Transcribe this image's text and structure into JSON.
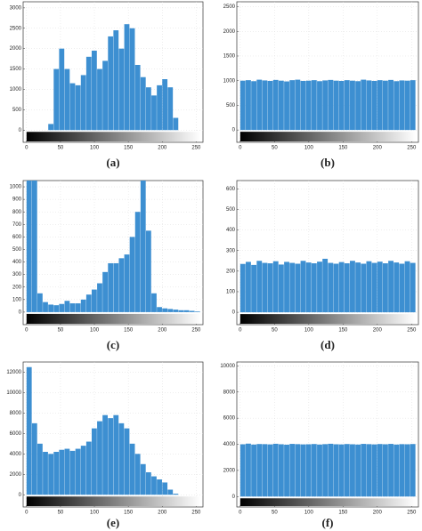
{
  "chart_data": [
    {
      "type": "histogram",
      "caption": "(a)",
      "color": "#3d8fd1",
      "grid": true,
      "bins": [
        0,
        8,
        16,
        24,
        32,
        40,
        48,
        56,
        64,
        72,
        80,
        88,
        96,
        104,
        112,
        120,
        128,
        136,
        144,
        152,
        160,
        168,
        176,
        184,
        192,
        200,
        208,
        216,
        224,
        232,
        240,
        248,
        256
      ],
      "values": [
        0,
        0,
        0,
        0,
        150,
        1500,
        2000,
        1500,
        1150,
        1100,
        1350,
        1800,
        1950,
        1500,
        1700,
        2300,
        2450,
        2000,
        2600,
        2500,
        1600,
        1300,
        1050,
        850,
        1100,
        1250,
        1050,
        300,
        0,
        0,
        0,
        0
      ],
      "xlim": [
        -5,
        260
      ],
      "xticks": [
        0,
        50,
        100,
        150,
        200,
        250
      ],
      "ylim": [
        -300,
        3150
      ],
      "yticks": [
        0,
        500,
        1000,
        1500,
        2000,
        2500,
        3000
      ]
    },
    {
      "type": "histogram",
      "caption": "(b)",
      "color": "#3d8fd1",
      "grid": true,
      "bins": [
        0,
        8,
        16,
        24,
        32,
        40,
        48,
        56,
        64,
        72,
        80,
        88,
        96,
        104,
        112,
        120,
        128,
        136,
        144,
        152,
        160,
        168,
        176,
        184,
        192,
        200,
        208,
        216,
        224,
        232,
        240,
        248,
        256
      ],
      "values": [
        1000,
        1010,
        990,
        1020,
        1005,
        995,
        1015,
        1000,
        985,
        1010,
        1020,
        995,
        1000,
        1010,
        990,
        1005,
        1015,
        1000,
        995,
        1010,
        1000,
        990,
        1020,
        1005,
        995,
        1010,
        1000,
        1015,
        990,
        1005,
        1000,
        1010
      ],
      "xlim": [
        -5,
        260
      ],
      "xticks": [
        0,
        50,
        100,
        150,
        200,
        250
      ],
      "ylim": [
        -250,
        2600
      ],
      "yticks": [
        0,
        500,
        1000,
        1500,
        2000,
        2500
      ]
    },
    {
      "type": "histogram",
      "caption": "(c)",
      "color": "#3d8fd1",
      "grid": true,
      "bins": [
        0,
        8,
        16,
        24,
        32,
        40,
        48,
        56,
        64,
        72,
        80,
        88,
        96,
        104,
        112,
        120,
        128,
        136,
        144,
        152,
        160,
        168,
        176,
        184,
        192,
        200,
        208,
        216,
        224,
        232,
        240,
        248,
        256
      ],
      "values": [
        1050,
        1050,
        150,
        80,
        60,
        55,
        65,
        90,
        70,
        70,
        100,
        140,
        180,
        230,
        320,
        390,
        390,
        430,
        460,
        600,
        800,
        1050,
        650,
        150,
        40,
        30,
        25,
        20,
        15,
        15,
        10,
        5
      ],
      "xlim": [
        -5,
        260
      ],
      "xticks": [
        0,
        50,
        100,
        150,
        200,
        250
      ],
      "ylim": [
        -100,
        1050
      ],
      "yticks": [
        0,
        100,
        200,
        300,
        400,
        500,
        600,
        700,
        800,
        900,
        1000
      ]
    },
    {
      "type": "histogram",
      "caption": "(d)",
      "color": "#3d8fd1",
      "grid": true,
      "bins": [
        0,
        8,
        16,
        24,
        32,
        40,
        48,
        56,
        64,
        72,
        80,
        88,
        96,
        104,
        112,
        120,
        128,
        136,
        144,
        152,
        160,
        168,
        176,
        184,
        192,
        200,
        208,
        216,
        224,
        232,
        240,
        248,
        256
      ],
      "values": [
        235,
        245,
        230,
        250,
        240,
        238,
        248,
        232,
        245,
        240,
        236,
        250,
        242,
        238,
        246,
        260,
        240,
        236,
        244,
        238,
        250,
        242,
        236,
        248,
        240,
        246,
        238,
        250,
        242,
        236,
        248,
        240
      ],
      "xlim": [
        -5,
        260
      ],
      "xticks": [
        0,
        50,
        100,
        150,
        200,
        250
      ],
      "ylim": [
        -60,
        640
      ],
      "yticks": [
        0,
        100,
        200,
        300,
        400,
        500,
        600
      ]
    },
    {
      "type": "histogram",
      "caption": "(e)",
      "color": "#3d8fd1",
      "grid": true,
      "bins": [
        0,
        8,
        16,
        24,
        32,
        40,
        48,
        56,
        64,
        72,
        80,
        88,
        96,
        104,
        112,
        120,
        128,
        136,
        144,
        152,
        160,
        168,
        176,
        184,
        192,
        200,
        208,
        216,
        224,
        232,
        240,
        248,
        256
      ],
      "values": [
        12500,
        7000,
        5000,
        4200,
        4000,
        4200,
        4400,
        4500,
        4300,
        4500,
        4800,
        5200,
        6500,
        7200,
        7800,
        7500,
        7800,
        7000,
        6500,
        5000,
        4000,
        3000,
        2200,
        1800,
        1500,
        1200,
        500,
        100,
        0,
        0,
        0,
        0
      ],
      "xlim": [
        -5,
        260
      ],
      "xticks": [
        0,
        50,
        100,
        150,
        200,
        250
      ],
      "ylim": [
        -1200,
        13000
      ],
      "yticks": [
        0,
        2000,
        4000,
        6000,
        8000,
        10000,
        12000
      ]
    },
    {
      "type": "histogram",
      "caption": "(f)",
      "color": "#3d8fd1",
      "grid": true,
      "bins": [
        0,
        8,
        16,
        24,
        32,
        40,
        48,
        56,
        64,
        72,
        80,
        88,
        96,
        104,
        112,
        120,
        128,
        136,
        144,
        152,
        160,
        168,
        176,
        184,
        192,
        200,
        208,
        216,
        224,
        232,
        240,
        248,
        256
      ],
      "values": [
        4000,
        4050,
        3980,
        4020,
        4010,
        3990,
        4040,
        4000,
        3970,
        4030,
        4010,
        3990,
        4000,
        4020,
        3980,
        4010,
        4040,
        4000,
        3990,
        4020,
        4000,
        3980,
        4030,
        4010,
        3990,
        4020,
        4000,
        4030,
        3980,
        4010,
        4000,
        4020
      ],
      "xlim": [
        -5,
        260
      ],
      "xticks": [
        0,
        50,
        100,
        150,
        200,
        250
      ],
      "ylim": [
        -800,
        10300
      ],
      "yticks": [
        0,
        2000,
        4000,
        6000,
        8000,
        10000
      ]
    }
  ]
}
